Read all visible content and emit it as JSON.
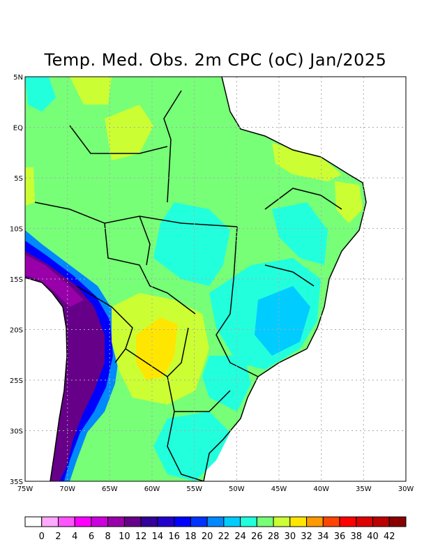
{
  "title": "Temp. Med. Obs. 2m CPC (oC) Jan/2025",
  "map": {
    "lon_range": [
      -75,
      -30
    ],
    "lat_range": [
      -35,
      5
    ],
    "lat_labels": [
      "5N",
      "EQ",
      "5S",
      "10S",
      "15S",
      "20S",
      "25S",
      "30S",
      "35S"
    ],
    "lon_labels": [
      "75W",
      "70W",
      "65W",
      "60W",
      "55W",
      "50W",
      "45W",
      "40W",
      "35W",
      "30W"
    ]
  },
  "colorbar": {
    "labels": [
      "0",
      "2",
      "4",
      "6",
      "8",
      "10",
      "12",
      "14",
      "16",
      "18",
      "20",
      "22",
      "24",
      "26",
      "28",
      "30",
      "32",
      "34",
      "36",
      "38",
      "40",
      "42"
    ],
    "colors": [
      "#ffffff",
      "#ffaaff",
      "#ff55ff",
      "#ff00ff",
      "#cc00dd",
      "#9900aa",
      "#660088",
      "#330099",
      "#2200cc",
      "#0000ff",
      "#0033ff",
      "#0088ff",
      "#00ccff",
      "#22ffdd",
      "#77ff77",
      "#ccff33",
      "#ffe600",
      "#ff9900",
      "#ff4400",
      "#ff0000",
      "#dd0000",
      "#bb0000",
      "#880000"
    ]
  },
  "colors": {
    "land_base": "#77ff77",
    "ocean": "#ffffff"
  }
}
